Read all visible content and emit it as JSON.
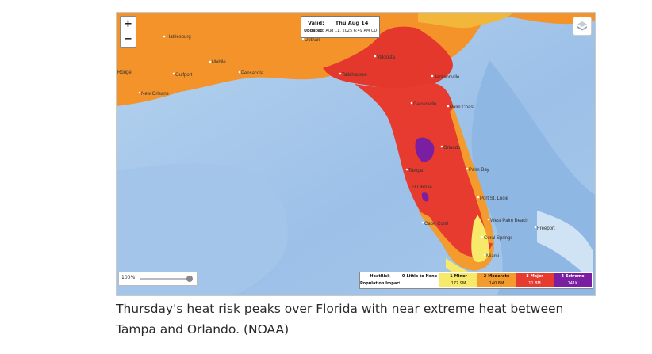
{
  "map": {
    "info": {
      "valid_label": "Valid:",
      "valid_date": "Thu  Aug 14",
      "updated_label": "Updated:",
      "updated_value": "Aug 11, 2025 6:49 AM CDT"
    },
    "zoom": {
      "in_label": "+",
      "out_label": "−"
    },
    "opacity": {
      "value_label": "100%"
    },
    "layers_icon": "layers-icon",
    "places": {
      "hattiesburg": "Hattiesburg",
      "mobile": "Mobile",
      "gulfport": "Gulfport",
      "pensacola": "Pensacola",
      "dothan": "Dothan",
      "valdosta": "Valdosta",
      "tallahassee": "Tallahassee",
      "jacksonville": "Jacksonville",
      "gainesville": "Gainesville",
      "palm_coast": "Palm Coast",
      "orlando": "Orlando",
      "tampa": "Tampa",
      "palm_bay": "Palm Bay",
      "florida": "FLORIDA",
      "port_st_lucie": "Port St. Lucie",
      "west_palm_beach": "West Palm Beach",
      "cape_coral": "Cape Coral",
      "coral_springs": "Coral Springs",
      "miami": "Miami",
      "freeport": "Freeport",
      "rouge": "Rouge",
      "new_orleans": "New Orleans"
    },
    "legend": {
      "heat_label": "HeatRisk",
      "pop_label": "Population Impacted",
      "categories": [
        {
          "name": "0-Little to None",
          "population": "",
          "color": "#ffffff"
        },
        {
          "name": "1-Minor",
          "population": "177.9M",
          "color": "#f7e96a"
        },
        {
          "name": "2-Moderate",
          "population": "140.8M",
          "color": "#f39b2c"
        },
        {
          "name": "3-Major",
          "population": "11.8M",
          "color": "#e63b2e"
        },
        {
          "name": "4-Extreme",
          "population": "141K",
          "color": "#7b1fa2"
        }
      ]
    }
  },
  "caption": "Thursday's heat risk peaks over Florida with near extreme heat between Tampa and Orlando. (NOAA)"
}
